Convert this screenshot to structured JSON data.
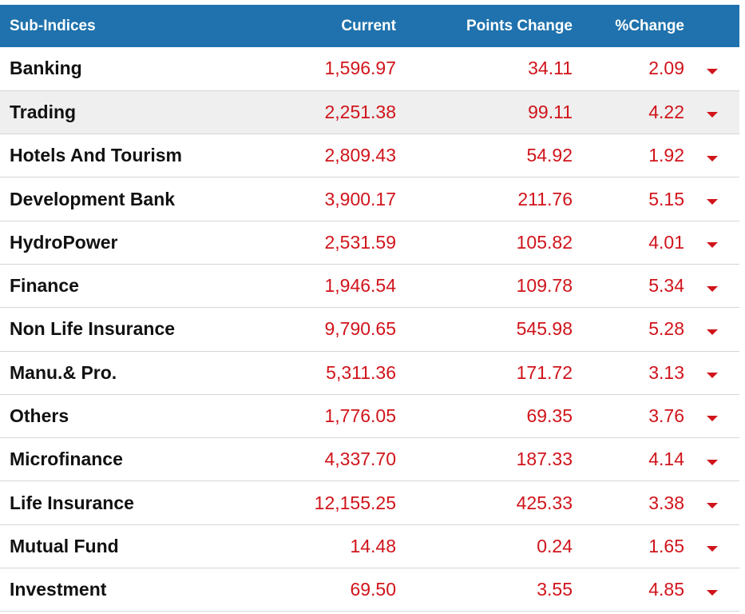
{
  "header": {
    "sub_indices": "Sub-Indices",
    "current": "Current",
    "points_change": "Points Change",
    "pct_change": "%Change"
  },
  "colors": {
    "header_bg": "#1f72ad",
    "negative": "#d0141b",
    "alt_row": "#efefef"
  },
  "rows": [
    {
      "name": "Banking",
      "current": "1,596.97",
      "points": "34.11",
      "pct": "2.09",
      "trend": "down-icon"
    },
    {
      "name": "Trading",
      "current": "2,251.38",
      "points": "99.11",
      "pct": "4.22",
      "trend": "down-icon"
    },
    {
      "name": "Hotels And Tourism",
      "current": "2,809.43",
      "points": "54.92",
      "pct": "1.92",
      "trend": "down-icon"
    },
    {
      "name": "Development Bank",
      "current": "3,900.17",
      "points": "211.76",
      "pct": "5.15",
      "trend": "down-icon"
    },
    {
      "name": "HydroPower",
      "current": "2,531.59",
      "points": "105.82",
      "pct": "4.01",
      "trend": "down-icon"
    },
    {
      "name": "Finance",
      "current": "1,946.54",
      "points": "109.78",
      "pct": "5.34",
      "trend": "down-icon"
    },
    {
      "name": "Non Life Insurance",
      "current": "9,790.65",
      "points": "545.98",
      "pct": "5.28",
      "trend": "down-icon"
    },
    {
      "name": "Manu.& Pro.",
      "current": "5,311.36",
      "points": "171.72",
      "pct": "3.13",
      "trend": "down-icon"
    },
    {
      "name": "Others",
      "current": "1,776.05",
      "points": "69.35",
      "pct": "3.76",
      "trend": "down-icon"
    },
    {
      "name": "Microfinance",
      "current": "4,337.70",
      "points": "187.33",
      "pct": "4.14",
      "trend": "down-icon"
    },
    {
      "name": "Life Insurance",
      "current": "12,155.25",
      "points": "425.33",
      "pct": "3.38",
      "trend": "down-icon"
    },
    {
      "name": "Mutual Fund",
      "current": "14.48",
      "points": "0.24",
      "pct": "1.65",
      "trend": "down-icon"
    },
    {
      "name": "Investment",
      "current": "69.50",
      "points": "3.55",
      "pct": "4.85",
      "trend": "down-icon"
    }
  ]
}
